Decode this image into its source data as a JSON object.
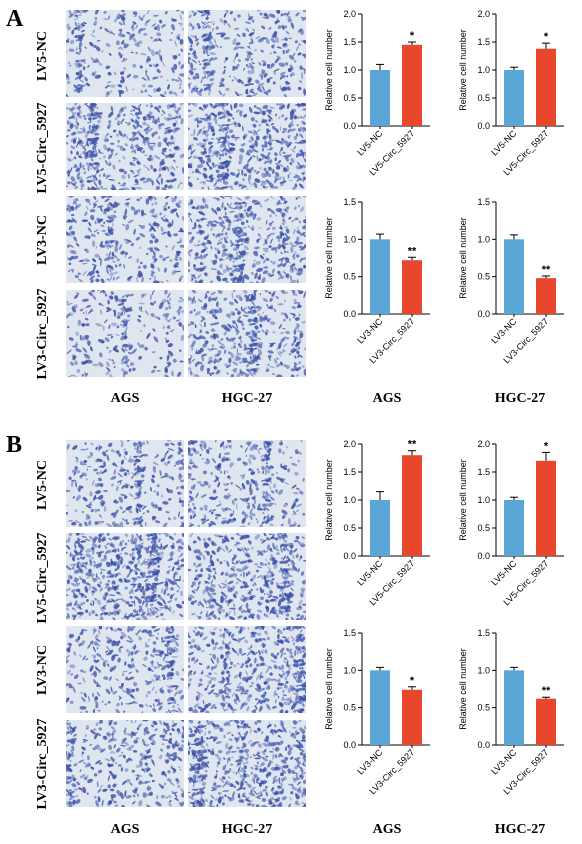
{
  "panels": [
    {
      "letter": "A",
      "rows": [
        "LV5-NC",
        "LV5-Circ_5927",
        "LV3-NC",
        "LV3-Circ_5927"
      ],
      "image_columns": [
        "AGS",
        "HGC-27"
      ],
      "chart_columns": [
        "AGS",
        "HGC-27"
      ]
    },
    {
      "letter": "B",
      "rows": [
        "LV5-NC",
        "LV5-Circ_5927",
        "LV3-NC",
        "LV3-Circ_5927"
      ],
      "image_columns": [
        "AGS",
        "HGC-27"
      ],
      "chart_columns": [
        "AGS",
        "HGC-27"
      ]
    }
  ],
  "colors": {
    "control": "#5aa6d6",
    "treatment": "#e8472e",
    "stain": "#3a4fa8",
    "background": "#dfe6ef"
  },
  "chart_data": [
    {
      "type": "bar",
      "panel": "A",
      "cell_line": "AGS",
      "categories": [
        "LV5-NC",
        "LV5-Circ_5927"
      ],
      "values": [
        1.0,
        1.45
      ],
      "errors": [
        0.1,
        0.05
      ],
      "significance": "*",
      "ylabel": "Relative cell number",
      "ylim": [
        0,
        2.0
      ],
      "yticks": [
        "0.0",
        "0.5",
        "1.0",
        "1.5",
        "2.0"
      ]
    },
    {
      "type": "bar",
      "panel": "A",
      "cell_line": "HGC-27",
      "categories": [
        "LV5-NC",
        "LV5-Circ_5927"
      ],
      "values": [
        1.0,
        1.38
      ],
      "errors": [
        0.05,
        0.1
      ],
      "significance": "*",
      "ylabel": "Relative cell number",
      "ylim": [
        0,
        2.0
      ],
      "yticks": [
        "0.0",
        "0.5",
        "1.0",
        "1.5",
        "2.0"
      ]
    },
    {
      "type": "bar",
      "panel": "A",
      "cell_line": "AGS",
      "categories": [
        "LV3-NC",
        "LV3-Circ_5927"
      ],
      "values": [
        1.0,
        0.72
      ],
      "errors": [
        0.07,
        0.04
      ],
      "significance": "**",
      "ylabel": "Relative cell number",
      "ylim": [
        0,
        1.5
      ],
      "yticks": [
        "0.0",
        "0.5",
        "1.0",
        "1.5"
      ]
    },
    {
      "type": "bar",
      "panel": "A",
      "cell_line": "HGC-27",
      "categories": [
        "LV3-NC",
        "LV3-Circ_5927"
      ],
      "values": [
        1.0,
        0.48
      ],
      "errors": [
        0.06,
        0.03
      ],
      "significance": "**",
      "ylabel": "Relative cell number",
      "ylim": [
        0,
        1.5
      ],
      "yticks": [
        "0.0",
        "0.5",
        "1.0",
        "1.5"
      ]
    },
    {
      "type": "bar",
      "panel": "B",
      "cell_line": "AGS",
      "categories": [
        "LV5-NC",
        "LV5-Circ_5927"
      ],
      "values": [
        1.0,
        1.8
      ],
      "errors": [
        0.15,
        0.08
      ],
      "significance": "**",
      "ylabel": "Relative cell number",
      "ylim": [
        0,
        2.0
      ],
      "yticks": [
        "0.0",
        "0.5",
        "1.0",
        "1.5",
        "2.0"
      ]
    },
    {
      "type": "bar",
      "panel": "B",
      "cell_line": "HGC-27",
      "categories": [
        "LV5-NC",
        "LV5-Circ_5927"
      ],
      "values": [
        1.0,
        1.7
      ],
      "errors": [
        0.05,
        0.15
      ],
      "significance": "*",
      "ylabel": "Relative cell number",
      "ylim": [
        0,
        2.0
      ],
      "yticks": [
        "0.0",
        "0.5",
        "1.0",
        "1.5",
        "2.0"
      ]
    },
    {
      "type": "bar",
      "panel": "B",
      "cell_line": "AGS",
      "categories": [
        "LV3-NC",
        "LV3-Circ_5927"
      ],
      "values": [
        1.0,
        0.74
      ],
      "errors": [
        0.04,
        0.04
      ],
      "significance": "*",
      "ylabel": "Relative cell number",
      "ylim": [
        0,
        1.5
      ],
      "yticks": [
        "0.0",
        "0.5",
        "1.0",
        "1.5"
      ]
    },
    {
      "type": "bar",
      "panel": "B",
      "cell_line": "HGC-27",
      "categories": [
        "LV3-NC",
        "LV3-Circ_5927"
      ],
      "values": [
        1.0,
        0.62
      ],
      "errors": [
        0.04,
        0.02
      ],
      "significance": "**",
      "ylabel": "Relative cell number",
      "ylim": [
        0,
        1.5
      ],
      "yticks": [
        "0.0",
        "0.5",
        "1.0",
        "1.5"
      ]
    }
  ]
}
